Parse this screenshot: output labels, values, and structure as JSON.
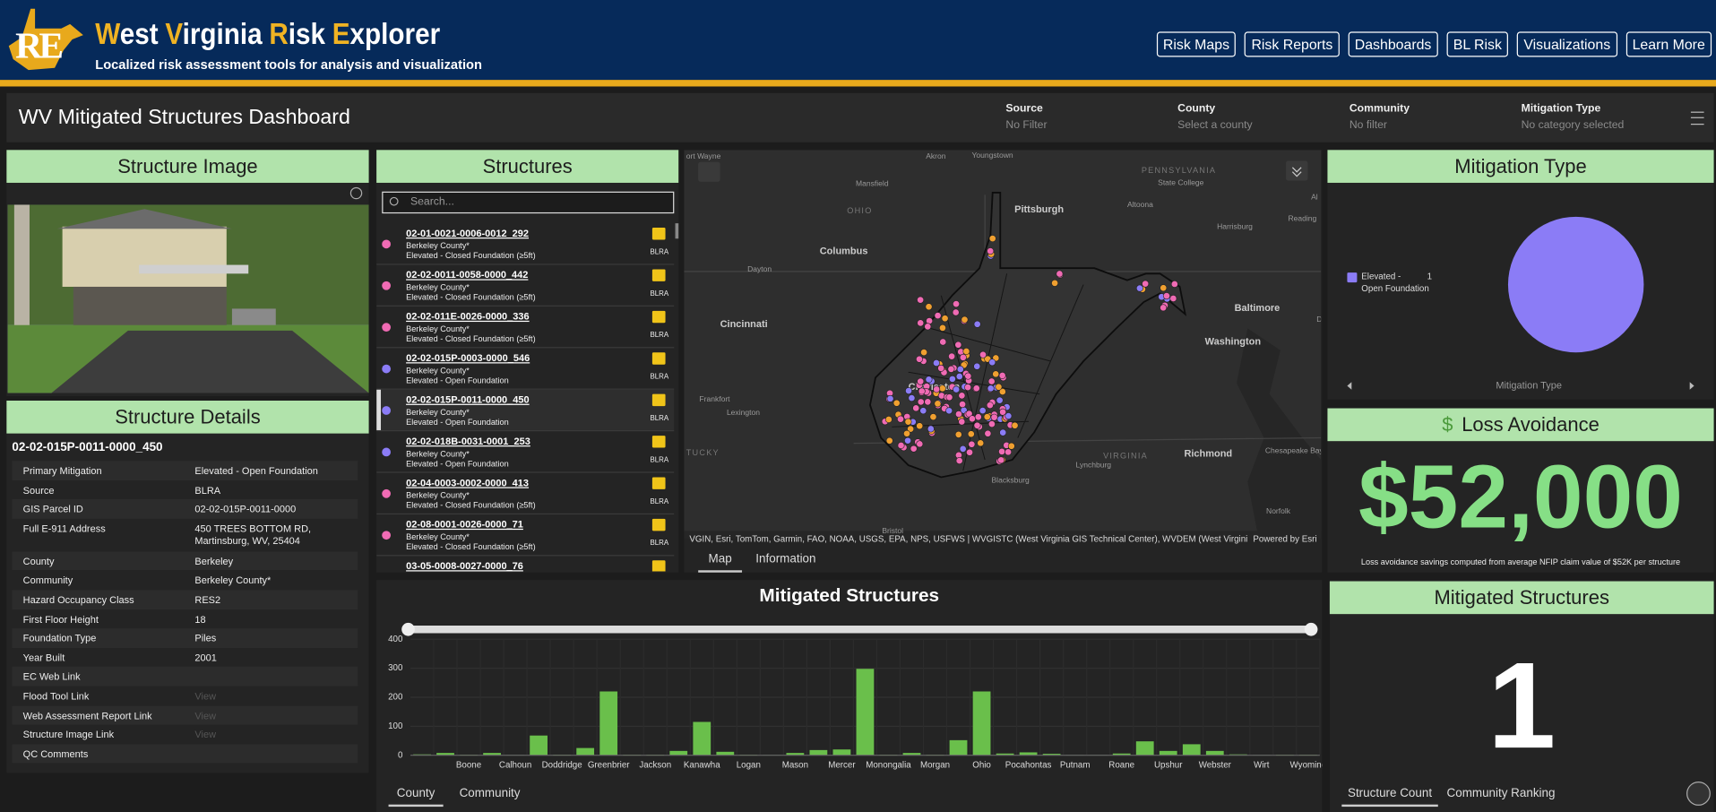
{
  "header": {
    "logo": "RE",
    "title": "West Virginia Risk Explorer",
    "subtitle": "Localized risk assessment tools for analysis and visualization"
  },
  "nav": [
    "Risk Maps",
    "Risk Reports",
    "Dashboards",
    "BL Risk",
    "Visualizations",
    "Learn More"
  ],
  "dashboard": {
    "title": "WV Mitigated Structures Dashboard",
    "filters": [
      {
        "label": "Source",
        "value": "No Filter"
      },
      {
        "label": "County",
        "value": "Select a county"
      },
      {
        "label": "Community",
        "value": "No filter"
      },
      {
        "label": "Mitigation Type",
        "value": "No category selected"
      }
    ]
  },
  "structure_image": {
    "title": "Structure Image"
  },
  "structure_details": {
    "title": "Structure Details",
    "id": "02-02-015P-0011-0000_450",
    "rows": [
      {
        "label": "Primary Mitigation",
        "value": "Elevated - Open Foundation"
      },
      {
        "label": "Source",
        "value": "BLRA"
      },
      {
        "label": "GIS Parcel ID",
        "value": "02-02-015P-0011-0000"
      },
      {
        "label": "Full E-911 Address",
        "value": "450 TREES BOTTOM RD, Martinsburg, WV, 25404"
      },
      {
        "label": "County",
        "value": "Berkeley"
      },
      {
        "label": "Community",
        "value": "Berkeley County*"
      },
      {
        "label": "Hazard Occupancy Class",
        "value": "RES2"
      },
      {
        "label": "First Floor Height",
        "value": "18"
      },
      {
        "label": "Foundation Type",
        "value": "Piles"
      },
      {
        "label": "Year Built",
        "value": "2001"
      },
      {
        "label": "EC Web Link"
      },
      {
        "label": "Flood Tool Link",
        "value": "View"
      },
      {
        "label": "Web Assessment Report Link",
        "value": "View"
      },
      {
        "label": "Structure Image Link",
        "value": "View"
      },
      {
        "label": "QC Comments"
      }
    ]
  },
  "structures": {
    "title": "Structures",
    "search_placeholder": "Search...",
    "items": [
      {
        "id": "02-01-0021-0006-0012_292",
        "county": "Berkeley County*",
        "mitigation": "Elevated - Closed Foundation (≥5ft)",
        "source": "BLRA",
        "color": "#f06bb4"
      },
      {
        "id": "02-02-0011-0058-0000_442",
        "county": "Berkeley County*",
        "mitigation": "Elevated - Closed Foundation (≥5ft)",
        "source": "BLRA",
        "color": "#f06bb4"
      },
      {
        "id": "02-02-011E-0026-0000_336",
        "county": "Berkeley County*",
        "mitigation": "Elevated - Closed Foundation (≥5ft)",
        "source": "BLRA",
        "color": "#f06bb4"
      },
      {
        "id": "02-02-015P-0003-0000_546",
        "county": "Berkeley County*",
        "mitigation": "Elevated - Open Foundation",
        "source": "BLRA",
        "color": "#8b7cf6"
      },
      {
        "id": "02-02-015P-0011-0000_450",
        "county": "Berkeley County*",
        "mitigation": "Elevated - Open Foundation",
        "source": "BLRA",
        "color": "#8b7cf6"
      },
      {
        "id": "02-02-018B-0031-0001_253",
        "county": "Berkeley County*",
        "mitigation": "Elevated - Open Foundation",
        "source": "BLRA",
        "color": "#8b7cf6"
      },
      {
        "id": "02-04-0003-0002-0000_413",
        "county": "Berkeley County*",
        "mitigation": "Elevated - Closed Foundation (≥5ft)",
        "source": "BLRA",
        "color": "#f06bb4"
      },
      {
        "id": "02-08-0001-0026-0000_71",
        "county": "Berkeley County*",
        "mitigation": "Elevated - Closed Foundation (≥5ft)",
        "source": "BLRA",
        "color": "#f06bb4"
      },
      {
        "id": "03-05-0008-0027-0000_76"
      }
    ]
  },
  "map": {
    "labels": [
      "ort Wayne",
      "Akron",
      "Youngstown",
      "PENNSYLVANIA",
      "State College",
      "Mansfield",
      "OHIO",
      "Pittsburgh",
      "Altoona",
      "Harrisburg",
      "Reading",
      "Al",
      "Columbus",
      "Dayton",
      "Cincinnati",
      "Baltimore",
      "D",
      "Washington",
      "Charleston",
      "Frankfort",
      "Lexington",
      "TUCKY",
      "VIRGINIA",
      "Richmond",
      "Chesapeake Bay",
      "Lynchburg",
      "Blacksburg",
      "Norfolk",
      "Bristol"
    ],
    "attribution": "VGIN, Esri, TomTom, Garmin, FAO, NOAA, USGS, EPA, NPS, USFWS | WVGISTC (West Virginia GIS Technical Center), WVDEM (West Virginia D...",
    "powered_by": "Powered by Esri",
    "tabs": [
      "Map",
      "Information"
    ]
  },
  "mitigation_type": {
    "title": "Mitigation Type"
  },
  "loss_avoidance": {
    "title": "Loss Avoidance",
    "icon": "$",
    "value": "$52,000",
    "note": "Loss avoidance savings computed from average NFIP claim value of $52K per structure"
  },
  "mitigated_structures_chart": {
    "tabs": [
      "County",
      "Community"
    ]
  },
  "mitigated_structures_count": {
    "title": "Mitigated Structures",
    "value": 1,
    "tabs": [
      "Structure Count",
      "Community Ranking"
    ]
  },
  "chart_data": [
    {
      "type": "pie",
      "categories": [
        "Elevated - Open Foundation"
      ],
      "values": [
        1
      ],
      "colors": [
        "#8b7cf6"
      ],
      "caption": "Mitigation Type"
    },
    {
      "type": "bar",
      "title": "Mitigated Structures",
      "categories": [
        null,
        null,
        "Boone",
        null,
        "Calhoun",
        null,
        "Doddridge",
        null,
        "Greenbrier",
        null,
        "Jackson",
        null,
        "Kanawha",
        null,
        "Logan",
        null,
        "Mason",
        null,
        "Mercer",
        null,
        "Monongalia",
        null,
        "Morgan",
        null,
        "Ohio",
        null,
        "Pocahontas",
        null,
        "Putnam",
        null,
        "Roane",
        null,
        "Upshur",
        null,
        "Webster",
        null,
        "Wirt",
        null,
        "Wyoming"
      ],
      "values": [
        3,
        8,
        2,
        8,
        1,
        68,
        2,
        25,
        220,
        2,
        2,
        15,
        115,
        12,
        2,
        1,
        8,
        18,
        20,
        298,
        2,
        8,
        2,
        52,
        220,
        6,
        10,
        5,
        1,
        1,
        6,
        48,
        15,
        38,
        15,
        3,
        1,
        2,
        2
      ],
      "color": "#6abf4b",
      "ylim": [
        0,
        400
      ],
      "yticks": [
        0,
        100,
        200,
        300,
        400
      ],
      "grid": true
    }
  ]
}
